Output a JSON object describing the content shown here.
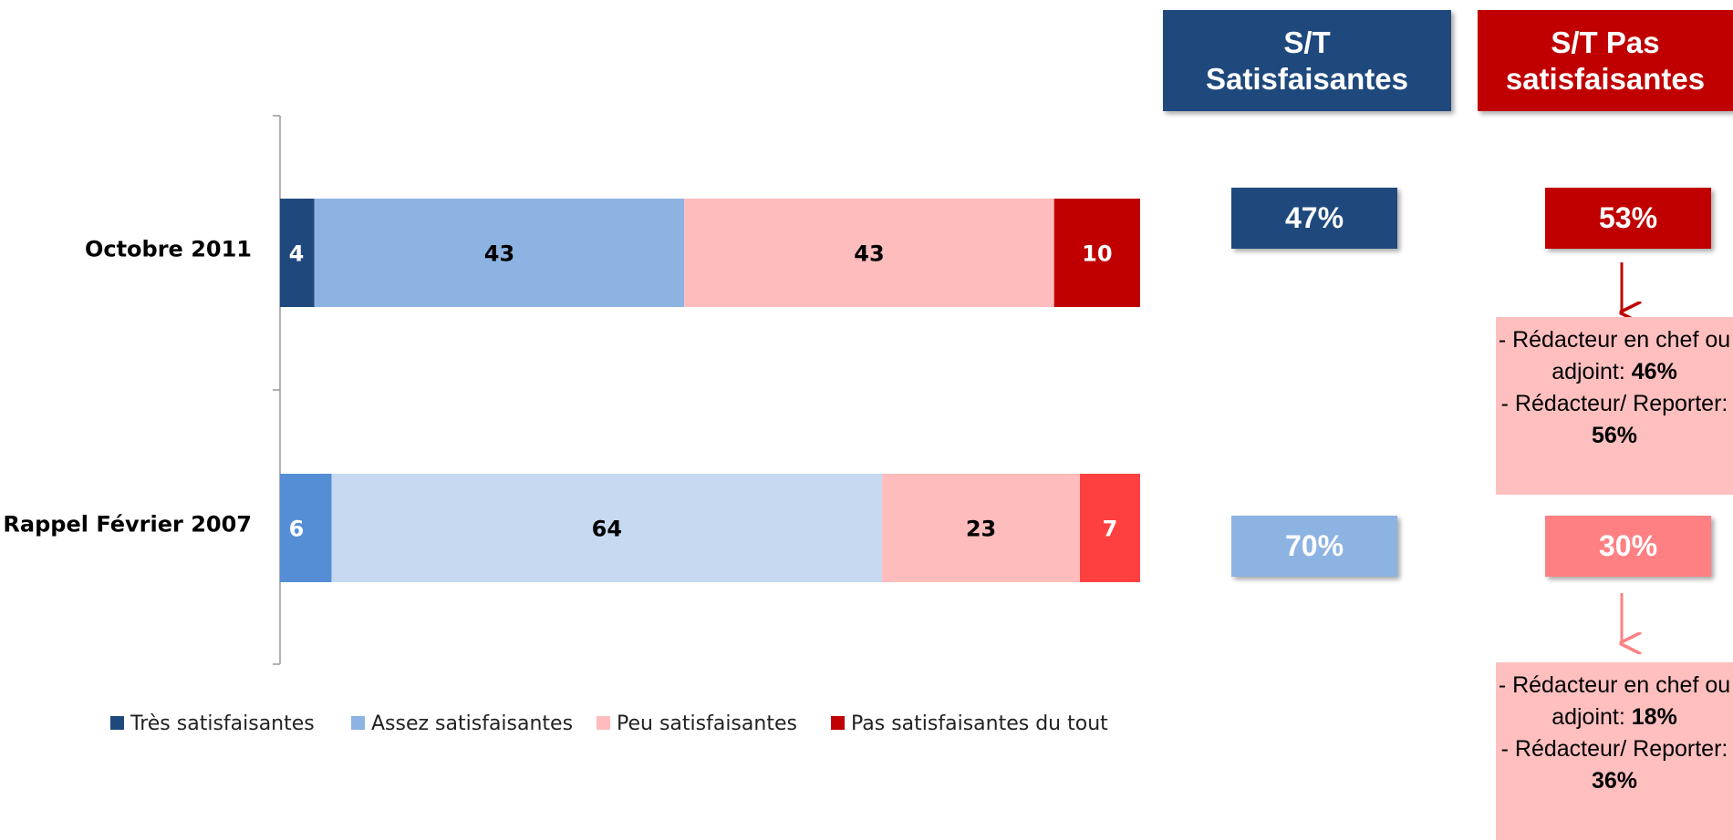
{
  "chart_data": {
    "type": "stacked_bar_horizontal",
    "categories": [
      "Octobre 2011",
      "Rappel Février 2007"
    ],
    "xlim": [
      0,
      100
    ],
    "series": [
      {
        "name": "Très satisfaisantes",
        "color": "#1f497d",
        "colors": [
          "#1f497d",
          "#558ed5"
        ],
        "label_color": "#ffffff",
        "values": [
          4,
          6
        ]
      },
      {
        "name": "Assez satisfaisantes",
        "color": "#8db3e2",
        "colors": [
          "#8db3e2",
          "#c6d9f1"
        ],
        "label_color": "#000000",
        "values": [
          43,
          64
        ]
      },
      {
        "name": "Peu satisfaisantes",
        "color": "#ffbcbc",
        "colors": [
          "#ffbcbc",
          "#ffbcbc"
        ],
        "label_color": "#000000",
        "values": [
          43,
          23
        ]
      },
      {
        "name": "Pas satisfaisantes du tout",
        "color": "#c00000",
        "colors": [
          "#c00000",
          "#ff4040"
        ],
        "label_color": "#ffffff",
        "values": [
          10,
          7
        ]
      }
    ],
    "legend": "bottom"
  },
  "side_panel": {
    "columns": [
      {
        "header": [
          "S/T",
          "Satisfaisantes"
        ],
        "color": "#1f497d",
        "values": [
          "47%",
          "70%"
        ],
        "value_colors": [
          "#1f497d",
          "#8db3e2"
        ]
      },
      {
        "header": [
          "S/T Pas",
          "satisfaisantes"
        ],
        "color": "#c00000",
        "values": [
          "53%",
          "30%"
        ],
        "value_colors": [
          "#c00000",
          "#ff8083"
        ]
      }
    ],
    "notes": [
      [
        {
          "text": "- Rédacteur en chef ou adjoint:",
          "value": "46%"
        },
        {
          "text": "- Rédacteur/ Reporter:",
          "value": "56%"
        }
      ],
      [
        {
          "text": "- Rédacteur en chef ou adjoint:",
          "value": "18%"
        },
        {
          "text": "- Rédacteur/ Reporter:",
          "value": "36%"
        }
      ]
    ]
  }
}
